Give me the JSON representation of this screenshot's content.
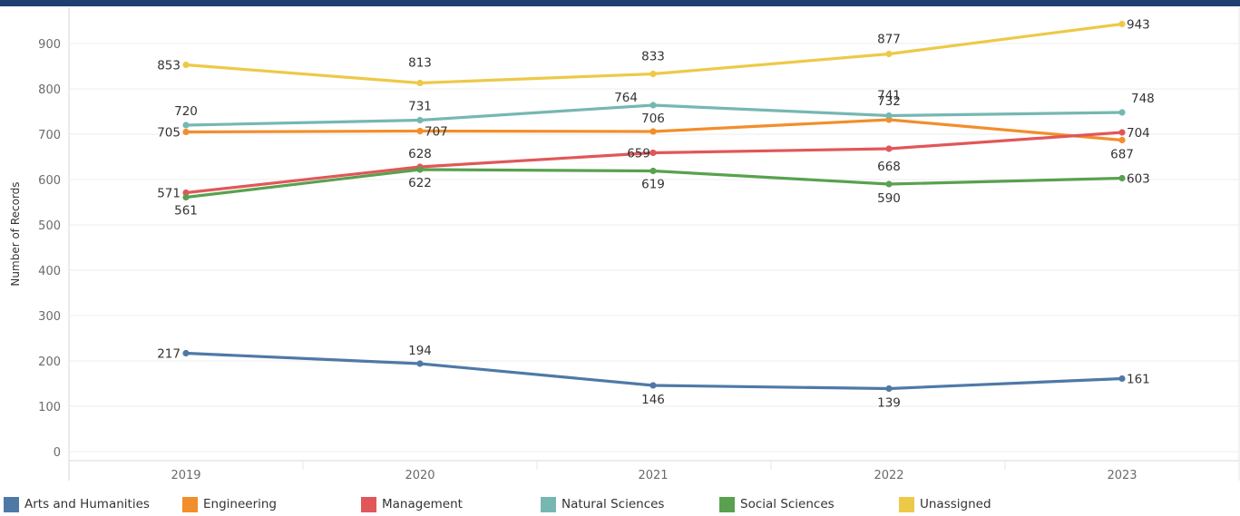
{
  "chart_data": {
    "type": "line",
    "categories": [
      "2019",
      "2020",
      "2021",
      "2022",
      "2023"
    ],
    "ylabel": "Number of Records",
    "xlabel": "",
    "yticks": [
      0,
      100,
      200,
      300,
      400,
      500,
      600,
      700,
      800,
      900
    ],
    "ylim": [
      0,
      990
    ],
    "grid": "horizontal",
    "legend_position": "bottom",
    "series": [
      {
        "name": "Arts and Humanities",
        "color": "#4e79a7",
        "values": [
          217,
          194,
          146,
          139,
          161
        ]
      },
      {
        "name": "Engineering",
        "color": "#f28e2b",
        "values": [
          705,
          707,
          706,
          732,
          687
        ]
      },
      {
        "name": "Management",
        "color": "#e15759",
        "values": [
          571,
          628,
          659,
          668,
          704
        ]
      },
      {
        "name": "Natural Sciences",
        "color": "#76b7b2",
        "values": [
          720,
          731,
          764,
          741,
          748
        ]
      },
      {
        "name": "Social Sciences",
        "color": "#59a14f",
        "values": [
          561,
          622,
          619,
          590,
          603
        ]
      },
      {
        "name": "Unassigned",
        "color": "#edc948",
        "values": [
          853,
          813,
          833,
          877,
          943
        ]
      }
    ]
  }
}
